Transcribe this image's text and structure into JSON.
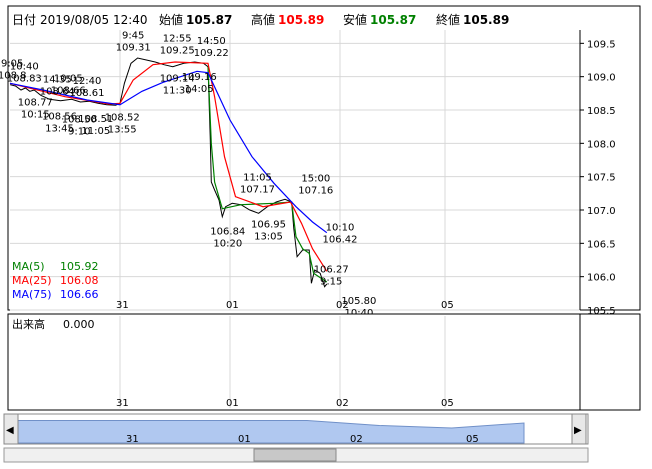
{
  "header": {
    "date_label": "日付",
    "date_value": "2019/08/05 12:40",
    "open_label": "始値",
    "open_value": "105.87",
    "high_label": "高値",
    "high_value": "105.89",
    "low_label": "安値",
    "low_value": "105.87",
    "close_label": "終値",
    "close_value": "105.89"
  },
  "colors": {
    "price": "#000000",
    "ma5": "#008000",
    "ma25": "#ff0000",
    "ma75": "#0000ff",
    "high": "#ff0000",
    "low": "#008000",
    "navigator_fill": "#b0c8f0"
  },
  "chart_data": {
    "type": "line",
    "title": "",
    "xlabel": "",
    "ylabel": "",
    "ylim": [
      105.5,
      109.7
    ],
    "y_ticks": [
      "109.5",
      "109.0",
      "108.5",
      "108.0",
      "107.5",
      "107.0",
      "106.5",
      "106.0",
      "105.5"
    ],
    "x_ticks": [
      "31",
      "01",
      "02",
      "05"
    ],
    "x_range": [
      0,
      4
    ],
    "grid": true,
    "series": [
      {
        "name": "price",
        "color": "#000000",
        "points": [
          [
            0.0,
            108.88
          ],
          [
            0.05,
            108.86
          ],
          [
            0.1,
            108.8
          ],
          [
            0.14,
            108.83
          ],
          [
            0.18,
            108.78
          ],
          [
            0.22,
            108.8
          ],
          [
            0.28,
            108.72
          ],
          [
            0.36,
            108.66
          ],
          [
            0.46,
            108.64
          ],
          [
            0.56,
            108.66
          ],
          [
            0.64,
            108.62
          ],
          [
            0.72,
            108.63
          ],
          [
            0.8,
            108.6
          ],
          [
            0.88,
            108.58
          ],
          [
            0.96,
            108.57
          ],
          [
            1.0,
            108.6
          ],
          [
            1.04,
            108.9
          ],
          [
            1.1,
            109.2
          ],
          [
            1.16,
            109.28
          ],
          [
            1.24,
            109.25
          ],
          [
            1.32,
            109.22
          ],
          [
            1.4,
            109.18
          ],
          [
            1.48,
            109.15
          ],
          [
            1.58,
            109.2
          ],
          [
            1.68,
            109.22
          ],
          [
            1.76,
            109.2
          ],
          [
            1.8,
            109.15
          ],
          [
            1.82,
            108.1
          ],
          [
            1.83,
            107.42
          ],
          [
            1.86,
            107.3
          ],
          [
            1.9,
            107.15
          ],
          [
            1.93,
            106.9
          ],
          [
            1.96,
            107.05
          ],
          [
            2.02,
            107.1
          ],
          [
            2.1,
            107.08
          ],
          [
            2.18,
            107.0
          ],
          [
            2.26,
            106.95
          ],
          [
            2.34,
            107.05
          ],
          [
            2.42,
            107.12
          ],
          [
            2.5,
            107.16
          ],
          [
            2.56,
            107.12
          ],
          [
            2.58,
            106.72
          ],
          [
            2.61,
            106.3
          ],
          [
            2.66,
            106.4
          ],
          [
            2.72,
            106.4
          ],
          [
            2.74,
            105.9
          ],
          [
            2.77,
            106.1
          ],
          [
            2.82,
            106.05
          ],
          [
            2.86,
            105.85
          ],
          [
            2.88,
            105.89
          ]
        ]
      },
      {
        "name": "MA(5)",
        "color": "#008000",
        "points": [
          [
            1.8,
            109.15
          ],
          [
            1.83,
            108.0
          ],
          [
            1.86,
            107.42
          ],
          [
            1.93,
            107.02
          ],
          [
            2.1,
            107.08
          ],
          [
            2.4,
            107.1
          ],
          [
            2.56,
            107.12
          ],
          [
            2.6,
            106.6
          ],
          [
            2.66,
            106.42
          ],
          [
            2.72,
            106.35
          ],
          [
            2.76,
            106.05
          ],
          [
            2.88,
            105.92
          ]
        ]
      },
      {
        "name": "MA(25)",
        "color": "#ff0000",
        "points": [
          [
            0.0,
            108.9
          ],
          [
            0.2,
            108.82
          ],
          [
            0.5,
            108.7
          ],
          [
            0.9,
            108.59
          ],
          [
            1.0,
            108.6
          ],
          [
            1.12,
            108.95
          ],
          [
            1.3,
            109.18
          ],
          [
            1.5,
            109.22
          ],
          [
            1.8,
            109.2
          ],
          [
            1.86,
            108.7
          ],
          [
            1.95,
            107.8
          ],
          [
            2.05,
            107.2
          ],
          [
            2.3,
            107.05
          ],
          [
            2.55,
            107.12
          ],
          [
            2.65,
            106.8
          ],
          [
            2.75,
            106.42
          ],
          [
            2.88,
            106.08
          ]
        ]
      },
      {
        "name": "MA(75)",
        "color": "#0000ff",
        "points": [
          [
            0.0,
            108.9
          ],
          [
            0.3,
            108.8
          ],
          [
            0.7,
            108.65
          ],
          [
            1.0,
            108.58
          ],
          [
            1.2,
            108.78
          ],
          [
            1.4,
            108.92
          ],
          [
            1.55,
            109.0
          ],
          [
            1.7,
            109.08
          ],
          [
            1.8,
            109.06
          ],
          [
            2.0,
            108.35
          ],
          [
            2.2,
            107.8
          ],
          [
            2.4,
            107.4
          ],
          [
            2.6,
            107.05
          ],
          [
            2.75,
            106.82
          ],
          [
            2.88,
            106.66
          ]
        ]
      }
    ],
    "annotations": [
      {
        "x": 0.02,
        "y": 108.88,
        "time": "9:05",
        "value": "108.8",
        "side": "high"
      },
      {
        "x": 0.13,
        "y": 108.84,
        "time": "10:40",
        "value": "108.83",
        "side": "high"
      },
      {
        "x": 0.23,
        "y": 108.78,
        "time": "10:15",
        "value": "108.77",
        "side": "low"
      },
      {
        "x": 0.43,
        "y": 108.64,
        "time": "14:35",
        "value": "108.64",
        "side": "high"
      },
      {
        "x": 0.53,
        "y": 108.66,
        "time": "10:05",
        "value": "108.66",
        "side": "high"
      },
      {
        "x": 0.7,
        "y": 108.62,
        "time": "12:40",
        "value": "108.61",
        "side": "high"
      },
      {
        "x": 0.45,
        "y": 108.57,
        "time": "13:45",
        "value": "108.56",
        "side": "low"
      },
      {
        "x": 0.63,
        "y": 108.52,
        "time": "9:10",
        "value": "108.50",
        "side": "low"
      },
      {
        "x": 0.78,
        "y": 108.53,
        "time": "11:05",
        "value": "108.51",
        "side": "low"
      },
      {
        "x": 1.02,
        "y": 108.55,
        "time": "13:55",
        "value": "108.52",
        "side": "low"
      },
      {
        "x": 1.12,
        "y": 109.3,
        "time": "9:45",
        "value": "109.31",
        "side": "high"
      },
      {
        "x": 1.52,
        "y": 109.26,
        "time": "12:55",
        "value": "109.25",
        "side": "high"
      },
      {
        "x": 1.83,
        "y": 109.22,
        "time": "14:50",
        "value": "109.22",
        "side": "high"
      },
      {
        "x": 1.52,
        "y": 109.14,
        "time": "11:30",
        "value": "109.14",
        "side": "low"
      },
      {
        "x": 1.72,
        "y": 109.16,
        "time": "14:05",
        "value": "109.16",
        "side": "low"
      },
      {
        "x": 2.25,
        "y": 107.17,
        "time": "11:05",
        "value": "107.17",
        "side": "high"
      },
      {
        "x": 2.78,
        "y": 107.16,
        "time": "15:00",
        "value": "107.16",
        "side": "high"
      },
      {
        "x": 1.98,
        "y": 106.84,
        "time": "10:20",
        "value": "106.84",
        "side": "low"
      },
      {
        "x": 2.35,
        "y": 106.95,
        "time": "13:05",
        "value": "106.95",
        "side": "low"
      },
      {
        "x": 3.0,
        "y": 106.42,
        "time": "10:10",
        "value": "106.42",
        "side": "high"
      },
      {
        "x": 2.92,
        "y": 106.27,
        "time": "9:15",
        "value": "106.27",
        "side": "low"
      },
      {
        "x": 3.18,
        "y": 105.8,
        "time": "10:40",
        "value": "105.80",
        "side": "low"
      }
    ]
  },
  "legend": [
    {
      "label": "MA(5)",
      "value": "105.92",
      "color": "#008000"
    },
    {
      "label": "MA(25)",
      "value": "106.08",
      "color": "#ff0000"
    },
    {
      "label": "MA(75)",
      "value": "106.66",
      "color": "#0000ff"
    }
  ],
  "volume": {
    "label": "出来高",
    "value": "0.000",
    "x_ticks": [
      "31",
      "01",
      "02",
      "05"
    ]
  },
  "navigator": {
    "x_ticks": [
      "31",
      "01",
      "02",
      "05"
    ],
    "profile": [
      0.9,
      0.9,
      0.9,
      0.9,
      0.9,
      0.7,
      0.6,
      0.8
    ],
    "left_arrow": "◀",
    "right_arrow": "▶"
  }
}
